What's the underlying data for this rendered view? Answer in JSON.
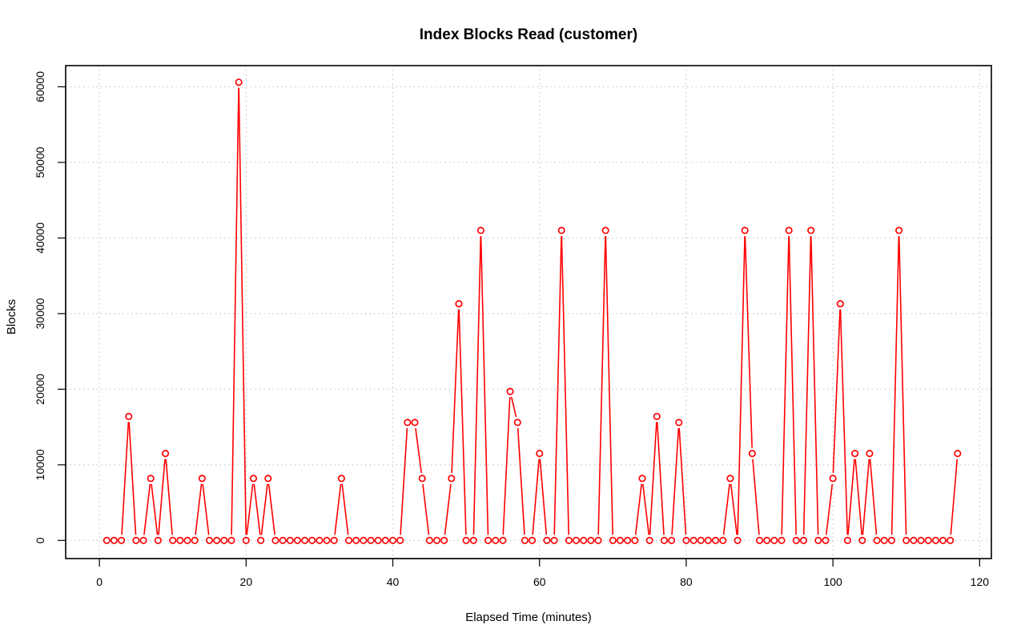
{
  "chart_data": {
    "type": "line",
    "title": "Index Blocks Read (customer)",
    "xlabel": "Elapsed Time (minutes)",
    "ylabel": "Blocks",
    "xlim": [
      -4.6,
      121.6
    ],
    "ylim": [
      -2400,
      62800
    ],
    "x_ticks": [
      0,
      20,
      40,
      60,
      80,
      100,
      120
    ],
    "y_ticks": [
      0,
      10000,
      20000,
      30000,
      40000,
      50000,
      60000
    ],
    "grid": true,
    "line_color": "#ff0000",
    "marker": "open-circle",
    "series": [
      {
        "x": [
          1,
          2,
          3,
          4,
          5,
          6,
          7,
          8,
          9,
          10,
          11,
          12,
          13,
          14,
          15,
          16,
          17,
          18,
          19,
          20,
          21,
          22,
          23,
          24,
          25,
          26,
          27,
          28,
          29,
          30,
          31,
          32,
          33,
          34,
          35,
          36,
          37,
          38,
          39,
          40,
          41,
          42,
          43,
          44,
          45,
          46,
          47,
          48,
          49,
          50,
          51,
          52,
          53,
          54,
          55,
          56,
          57,
          58,
          59,
          60,
          61,
          62,
          63,
          64,
          65,
          66,
          67,
          68,
          69,
          70,
          71,
          72,
          73,
          74,
          75,
          76,
          77,
          78,
          79,
          80,
          81,
          82,
          83,
          84,
          85,
          86,
          87,
          88,
          89,
          90,
          91,
          92,
          93,
          94,
          95,
          96,
          97,
          98,
          99,
          100,
          101,
          102,
          103,
          104,
          105,
          106,
          107,
          108,
          109,
          110,
          111,
          112,
          113,
          114,
          115,
          116,
          117
        ],
        "values": [
          0,
          0,
          0,
          16400,
          0,
          0,
          8200,
          0,
          11500,
          0,
          0,
          0,
          0,
          8200,
          0,
          0,
          0,
          0,
          60600,
          0,
          8200,
          0,
          8200,
          0,
          0,
          0,
          0,
          0,
          0,
          0,
          0,
          0,
          8200,
          0,
          0,
          0,
          0,
          0,
          0,
          0,
          0,
          15600,
          15600,
          8200,
          0,
          0,
          0,
          8200,
          31300,
          0,
          0,
          41000,
          0,
          0,
          0,
          19700,
          15600,
          0,
          0,
          11500,
          0,
          0,
          41000,
          0,
          0,
          0,
          0,
          0,
          41000,
          0,
          0,
          0,
          0,
          8200,
          0,
          16400,
          0,
          0,
          15600,
          0,
          0,
          0,
          0,
          0,
          0,
          8200,
          0,
          41000,
          11500,
          0,
          0,
          0,
          0,
          41000,
          0,
          0,
          41000,
          0,
          0,
          8200,
          31300,
          0,
          11500,
          0,
          11500,
          0,
          0,
          0,
          41000,
          0,
          0,
          0,
          0,
          0,
          0,
          0,
          11500
        ]
      }
    ]
  }
}
